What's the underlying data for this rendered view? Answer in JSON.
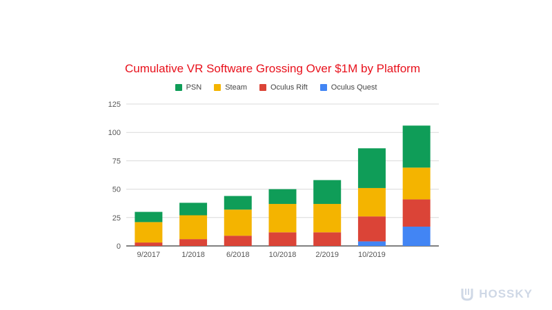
{
  "chart_data": {
    "type": "bar",
    "stacked": true,
    "title": "Cumulative VR Software Grossing Over $1M by Platform",
    "xlabel": "",
    "ylabel": "",
    "ylim": [
      0,
      125
    ],
    "yticks": [
      0,
      25,
      50,
      75,
      100,
      125
    ],
    "grid": true,
    "legend_position": "top",
    "categories": [
      "9/2017",
      "1/2018",
      "6/2018",
      "10/2018",
      "2/2019",
      "10/2019",
      ""
    ],
    "series": [
      {
        "name": "Oculus Quest",
        "color": "#4285f4",
        "values": [
          0,
          0,
          0,
          0,
          0,
          4,
          17
        ]
      },
      {
        "name": "Oculus Rift",
        "color": "#db4437",
        "values": [
          3,
          6,
          9,
          12,
          12,
          22,
          24
        ]
      },
      {
        "name": "Steam",
        "color": "#f4b400",
        "values": [
          18,
          21,
          23,
          25,
          25,
          25,
          28
        ]
      },
      {
        "name": "PSN",
        "color": "#0f9d58",
        "values": [
          9,
          11,
          12,
          13,
          21,
          35,
          37
        ]
      }
    ],
    "legend_order": [
      "PSN",
      "Steam",
      "Oculus Rift",
      "Oculus Quest"
    ]
  },
  "watermark": {
    "text": "HOSSKY"
  }
}
